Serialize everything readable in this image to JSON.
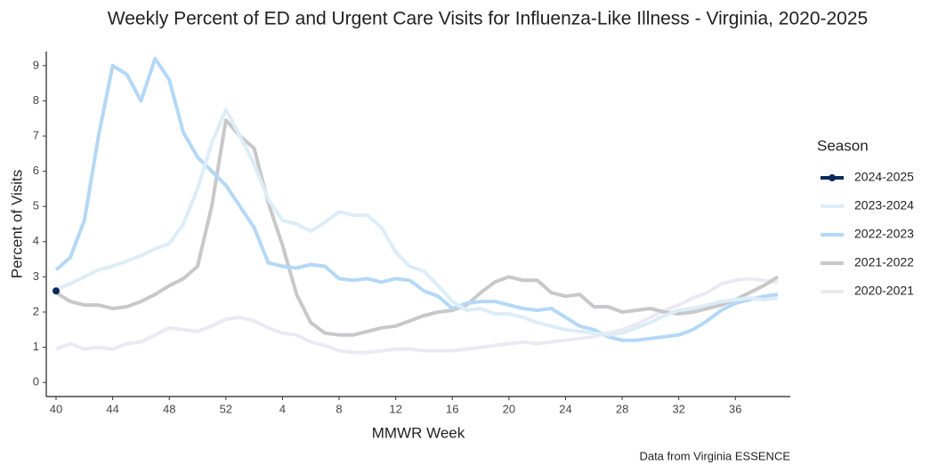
{
  "chart_data": {
    "type": "line",
    "title": "Weekly Percent of ED and Urgent Care Visits for Influenza-Like Illness - Virginia, 2020-2025",
    "x_label": "MMWR Week",
    "y_label": "Percent of Visits",
    "legend_title": "Season",
    "legend": "right",
    "caption": "Data from Virginia ESSENCE",
    "categories": [
      40,
      null,
      null,
      null,
      44,
      null,
      null,
      null,
      48,
      null,
      null,
      null,
      52,
      null,
      null,
      null,
      4,
      null,
      null,
      null,
      8,
      null,
      null,
      null,
      12,
      null,
      null,
      null,
      16,
      null,
      null,
      null,
      20,
      null,
      null,
      null,
      24,
      null,
      null,
      null,
      28,
      null,
      null,
      null,
      32,
      null,
      null,
      null,
      36,
      null,
      null,
      null
    ],
    "ylim": [
      -0.4,
      9.4
    ],
    "yticks": [
      0,
      1,
      2,
      3,
      4,
      5,
      6,
      7,
      8,
      9
    ],
    "series": [
      {
        "name": "2024-2025",
        "color": "#0b2a5c",
        "marker": true,
        "values": [
          2.6,
          null,
          null,
          null,
          null,
          null,
          null,
          null,
          null,
          null,
          null,
          null,
          null,
          null,
          null,
          null,
          null,
          null,
          null,
          null,
          null,
          null,
          null,
          null,
          null,
          null,
          null,
          null,
          null,
          null,
          null,
          null,
          null,
          null,
          null,
          null,
          null,
          null,
          null,
          null,
          null,
          null,
          null,
          null,
          null,
          null,
          null,
          null,
          null,
          null,
          null,
          null
        ]
      },
      {
        "name": "2023-2024",
        "color": "#dcedf7",
        "values": [
          2.65,
          2.8,
          3.0,
          3.2,
          3.3,
          3.45,
          3.6,
          3.8,
          3.95,
          4.5,
          5.5,
          6.8,
          7.75,
          7.0,
          6.2,
          5.2,
          4.6,
          4.5,
          4.3,
          4.55,
          4.85,
          4.75,
          4.75,
          4.4,
          3.7,
          3.3,
          3.15,
          2.75,
          2.3,
          2.05,
          2.1,
          1.95,
          1.95,
          1.85,
          1.7,
          1.6,
          1.5,
          1.45,
          1.4,
          1.35,
          1.4,
          1.55,
          1.7,
          1.9,
          2.05,
          2.1,
          2.2,
          2.3,
          2.35,
          2.4,
          2.35,
          2.4
        ]
      },
      {
        "name": "2022-2023",
        "color": "#b4d8f6",
        "values": [
          3.2,
          3.55,
          4.6,
          7.0,
          9.0,
          8.75,
          8.0,
          9.2,
          8.6,
          7.1,
          6.4,
          6.0,
          5.6,
          5.0,
          4.4,
          3.4,
          3.3,
          3.25,
          3.35,
          3.3,
          2.95,
          2.9,
          2.95,
          2.85,
          2.95,
          2.9,
          2.6,
          2.45,
          2.1,
          2.25,
          2.3,
          2.3,
          2.2,
          2.1,
          2.05,
          2.1,
          1.85,
          1.6,
          1.5,
          1.3,
          1.2,
          1.2,
          1.25,
          1.3,
          1.35,
          1.5,
          1.75,
          2.05,
          2.25,
          2.35,
          2.45,
          2.5
        ]
      },
      {
        "name": "2021-2022",
        "color": "#c8c8ca",
        "values": [
          2.55,
          2.3,
          2.2,
          2.2,
          2.1,
          2.15,
          2.3,
          2.5,
          2.75,
          2.95,
          3.3,
          5.0,
          7.45,
          7.0,
          6.65,
          5.1,
          3.9,
          2.5,
          1.7,
          1.4,
          1.35,
          1.35,
          1.45,
          1.55,
          1.6,
          1.75,
          1.9,
          2.0,
          2.05,
          2.2,
          2.55,
          2.85,
          3.0,
          2.9,
          2.9,
          2.55,
          2.45,
          2.5,
          2.15,
          2.15,
          2.0,
          2.05,
          2.1,
          2.0,
          1.95,
          2.0,
          2.1,
          2.2,
          2.35,
          2.55,
          2.75,
          3.0
        ]
      },
      {
        "name": "2020-2021",
        "color": "#ebe9f3",
        "values": [
          0.95,
          1.1,
          0.95,
          1.0,
          0.95,
          1.1,
          1.15,
          1.35,
          1.55,
          1.5,
          1.45,
          1.6,
          1.8,
          1.85,
          1.75,
          1.55,
          1.4,
          1.35,
          1.15,
          1.05,
          0.9,
          0.85,
          0.85,
          0.9,
          0.95,
          0.95,
          0.9,
          0.9,
          0.9,
          0.95,
          1.0,
          1.05,
          1.1,
          1.15,
          1.1,
          1.15,
          1.2,
          1.25,
          1.3,
          1.4,
          1.5,
          1.65,
          1.85,
          2.05,
          2.2,
          2.4,
          2.55,
          2.8,
          2.9,
          2.95,
          2.9,
          2.85
        ]
      }
    ]
  }
}
